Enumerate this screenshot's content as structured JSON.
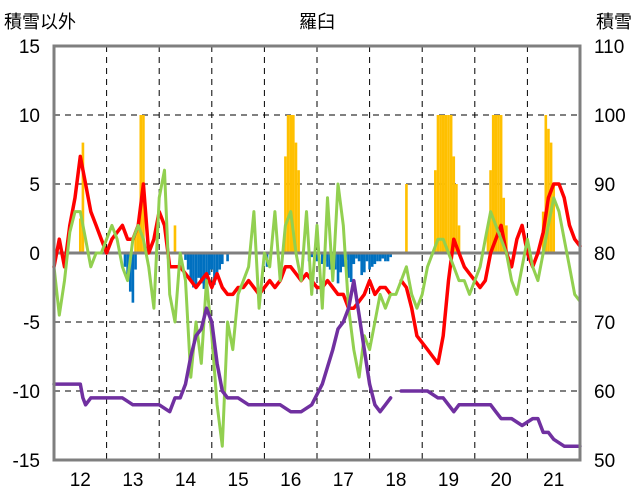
{
  "chart_data": {
    "type": "combo",
    "title": "羅臼",
    "ylabel_left": "積雪以外",
    "ylabel_right": "積雪",
    "x_range": [
      11.5,
      21.5
    ],
    "x_ticks": [
      12,
      13,
      14,
      15,
      16,
      17,
      18,
      19,
      20,
      21
    ],
    "ylim_left": [
      -15,
      15
    ],
    "y_ticks_left": [
      -15,
      -10,
      -5,
      0,
      5,
      10,
      15
    ],
    "ylim_right": [
      50,
      110
    ],
    "y_ticks_right": [
      50,
      60,
      70,
      80,
      90,
      100,
      110
    ],
    "grid": true,
    "colors": {
      "precip_bars": "#ffc000",
      "negative_bars": "#0070c0",
      "temperature": "#ff0000",
      "green_series": "#92d050",
      "snow_depth": "#7030a0",
      "frame": "#7f7f7f"
    },
    "series": [
      {
        "axis": "left",
        "kind": "bar",
        "x": [
          12.0,
          12.05,
          13.05,
          13.1,
          13.15,
          13.2,
          13.8,
          15.9,
          15.95,
          16.0,
          16.05,
          16.1,
          16.15,
          18.2,
          18.75,
          18.8,
          18.85,
          18.9,
          18.95,
          19.0,
          19.05,
          19.1,
          19.15,
          19.2,
          19.75,
          19.8,
          19.85,
          19.9,
          19.95,
          20.0,
          20.05,
          20.1,
          20.8,
          20.85,
          20.9,
          20.95,
          21.0
        ],
        "values": [
          2.5,
          8,
          1.5,
          2,
          10,
          10,
          2,
          7,
          10,
          10,
          10,
          8,
          6,
          5,
          6,
          10,
          10,
          10,
          10,
          10,
          10,
          7,
          5,
          2,
          2,
          6,
          10,
          10,
          10,
          10,
          4,
          2,
          3,
          10,
          9,
          8,
          5
        ]
      },
      {
        "axis": "left",
        "kind": "bar",
        "x": [
          12.85,
          12.9,
          12.95,
          13.0,
          13.05,
          14.0,
          14.05,
          14.1,
          14.15,
          14.2,
          14.25,
          14.3,
          14.35,
          14.4,
          14.45,
          14.5,
          14.55,
          14.6,
          14.65,
          14.7,
          14.8,
          15.5,
          15.55,
          16.35,
          16.4,
          16.5,
          16.6,
          16.65,
          16.7,
          16.75,
          16.8,
          16.85,
          16.9,
          16.95,
          17.0,
          17.05,
          17.1,
          17.15,
          17.2,
          17.25,
          17.3,
          17.35,
          17.4,
          17.45,
          17.5,
          17.55,
          17.6,
          17.65,
          17.7,
          17.75,
          17.8,
          17.85,
          17.9
        ],
        "values": [
          -1,
          -2,
          -2.8,
          -3.6,
          -1.2,
          -0.5,
          -1.2,
          -2,
          -2.5,
          -2.3,
          -1.8,
          -2.2,
          -2.6,
          -2,
          -1.6,
          -1.2,
          -2.3,
          -1.8,
          -1.2,
          -0.8,
          -0.6,
          -0.5,
          -1,
          -0.6,
          -0.3,
          -0.6,
          -0.8,
          -0.6,
          -1,
          -1.2,
          -0.8,
          -1.2,
          -2.2,
          -1.4,
          -1,
          -0.5,
          -1.8,
          -2.1,
          -0.8,
          -0.4,
          -0.6,
          -1.6,
          -1.4,
          -0.6,
          -1.2,
          -1,
          -0.8,
          -0.6,
          -0.6,
          -0.4,
          -0.6,
          -0.6,
          -0.3
        ]
      },
      {
        "axis": "left",
        "kind": "line",
        "x": [
          11.5,
          11.6,
          11.7,
          11.8,
          11.9,
          12.0,
          12.1,
          12.2,
          12.3,
          12.4,
          12.5,
          12.6,
          12.7,
          12.8,
          12.9,
          13.0,
          13.1,
          13.2,
          13.3,
          13.4,
          13.5,
          13.6,
          13.7,
          13.8,
          13.9,
          14.0,
          14.1,
          14.2,
          14.3,
          14.4,
          14.5,
          14.6,
          14.7,
          14.8,
          14.9,
          15.0,
          15.1,
          15.2,
          15.3,
          15.4,
          15.5,
          15.6,
          15.7,
          15.8,
          15.9,
          16.0,
          16.1,
          16.2,
          16.3,
          16.4,
          16.5,
          16.6,
          16.7,
          16.8,
          16.9,
          17.0,
          17.1,
          17.2,
          17.3,
          17.4,
          17.5,
          17.6,
          17.7,
          17.8,
          17.9,
          null,
          18.1,
          18.2,
          18.3,
          18.4,
          18.5,
          18.6,
          18.7,
          18.8,
          18.9,
          19.0,
          19.1,
          19.2,
          19.3,
          19.4,
          19.5,
          19.6,
          19.7,
          19.8,
          19.9,
          20.0,
          20.1,
          20.2,
          20.3,
          20.4,
          20.5,
          20.6,
          20.7,
          20.8,
          20.9,
          21.0,
          21.1,
          21.2,
          21.3,
          21.4,
          21.5
        ],
        "values": [
          -1,
          1,
          -1,
          2,
          4,
          7,
          5,
          3,
          2,
          1,
          0,
          1,
          1.5,
          2,
          1,
          1,
          2,
          5,
          0,
          1,
          3,
          2,
          -1,
          -1,
          -1,
          -1.5,
          -2,
          -2.5,
          -2,
          -1.5,
          -2.5,
          -1.5,
          -2.5,
          -3,
          -3,
          -2.5,
          -2.5,
          -2,
          -2.5,
          -3,
          -2.5,
          -2,
          -2.5,
          -2,
          -1,
          -1,
          -1.5,
          -2,
          -1.5,
          -2,
          -2.5,
          -2.5,
          -2,
          -2.5,
          -3,
          -3,
          -4,
          -4,
          -3.5,
          -3,
          -2,
          -3,
          -2.5,
          -2.5,
          -3,
          null,
          -2,
          -2.5,
          -4,
          -6,
          -6.5,
          -7,
          -7.5,
          -8,
          -6,
          -2,
          1,
          0,
          -1,
          -1.5,
          -2,
          -2.5,
          -2,
          0,
          1,
          2,
          0,
          -1,
          1,
          2,
          0,
          -1,
          0,
          1.5,
          4,
          5,
          5,
          4,
          2,
          1,
          0.5
        ]
      },
      {
        "axis": "left",
        "kind": "line",
        "x": [
          11.5,
          11.6,
          11.7,
          11.8,
          11.9,
          12.0,
          12.1,
          12.2,
          12.3,
          12.4,
          12.5,
          12.6,
          12.7,
          12.8,
          12.9,
          13.0,
          13.1,
          13.2,
          13.3,
          13.4,
          13.5,
          13.6,
          13.7,
          13.8,
          13.9,
          14.0,
          14.1,
          14.2,
          14.3,
          14.4,
          14.5,
          14.6,
          14.7,
          14.8,
          14.9,
          15.0,
          15.1,
          15.2,
          15.3,
          15.4,
          15.5,
          15.6,
          15.7,
          15.8,
          15.9,
          16.0,
          16.1,
          16.2,
          16.3,
          16.4,
          16.5,
          16.6,
          16.7,
          16.8,
          16.9,
          17.0,
          17.1,
          17.2,
          17.3,
          17.4,
          17.5,
          17.6,
          17.7,
          17.8,
          17.9,
          18.0,
          18.1,
          18.2,
          18.3,
          18.4,
          18.5,
          18.6,
          18.7,
          18.8,
          18.9,
          19.0,
          19.1,
          19.2,
          19.3,
          19.4,
          19.5,
          19.6,
          19.7,
          19.8,
          19.9,
          20.0,
          20.1,
          20.2,
          20.3,
          20.4,
          20.5,
          20.6,
          20.7,
          20.8,
          20.9,
          21.0,
          21.1,
          21.2,
          21.3,
          21.4,
          21.5
        ],
        "values": [
          -1,
          -4.5,
          -2,
          1.5,
          3,
          3,
          1,
          -1,
          0,
          0,
          1,
          2,
          1,
          -1,
          -2,
          1,
          2,
          1,
          -1,
          -4,
          4,
          6,
          -3,
          -5,
          0,
          -2,
          -9,
          -5,
          -8,
          -2,
          -6,
          -11,
          -14,
          -5,
          -7,
          -3,
          -2,
          -1,
          3,
          -4,
          0,
          -1,
          3,
          -2,
          2,
          3,
          0,
          -2,
          3,
          -3,
          2,
          -4,
          4,
          -2,
          5,
          2,
          -4,
          -7,
          -9,
          -6,
          -7,
          -5,
          -3,
          -4,
          -3,
          -3,
          -2,
          -1,
          -3,
          -4,
          -3,
          -1,
          0,
          1,
          1,
          0,
          -1,
          -2,
          -2,
          -3,
          -2,
          -1,
          1,
          3,
          2,
          1,
          0,
          -2,
          -3,
          -1,
          1,
          -1,
          -2,
          0,
          2,
          4,
          3,
          1,
          -1,
          -3,
          -3.5
        ]
      },
      {
        "axis": "right",
        "kind": "line",
        "x": [
          11.5,
          11.8,
          12.0,
          12.05,
          12.1,
          12.2,
          12.5,
          12.8,
          13.0,
          13.2,
          13.5,
          13.7,
          13.8,
          13.9,
          14.0,
          14.1,
          14.2,
          14.3,
          14.4,
          14.5,
          14.6,
          14.7,
          14.8,
          14.9,
          15.0,
          15.2,
          15.5,
          15.8,
          16.0,
          16.2,
          16.4,
          16.6,
          16.8,
          16.9,
          17.0,
          17.1,
          17.2,
          17.3,
          17.4,
          17.5,
          17.6,
          17.7,
          17.8,
          17.9,
          null,
          18.1,
          18.2,
          18.4,
          18.6,
          18.8,
          18.9,
          19.0,
          19.1,
          19.2,
          19.4,
          19.6,
          19.8,
          19.9,
          20.0,
          20.2,
          20.4,
          20.6,
          20.7,
          20.8,
          20.9,
          21.0,
          21.2,
          21.4,
          21.5
        ],
        "values": [
          61,
          61,
          61,
          59,
          58,
          59,
          59,
          59,
          58,
          58,
          58,
          57,
          59,
          59,
          61,
          65,
          68,
          69,
          72,
          70,
          64,
          60,
          59,
          59,
          59,
          58,
          58,
          58,
          57,
          57,
          58,
          61,
          66,
          69,
          70,
          72,
          76,
          71,
          66,
          61,
          58,
          57,
          58,
          59,
          null,
          60,
          60,
          60,
          60,
          59,
          59,
          58,
          57,
          58,
          58,
          58,
          58,
          57,
          56,
          56,
          55,
          56,
          56,
          54,
          54,
          53,
          52,
          52,
          52
        ]
      }
    ]
  }
}
